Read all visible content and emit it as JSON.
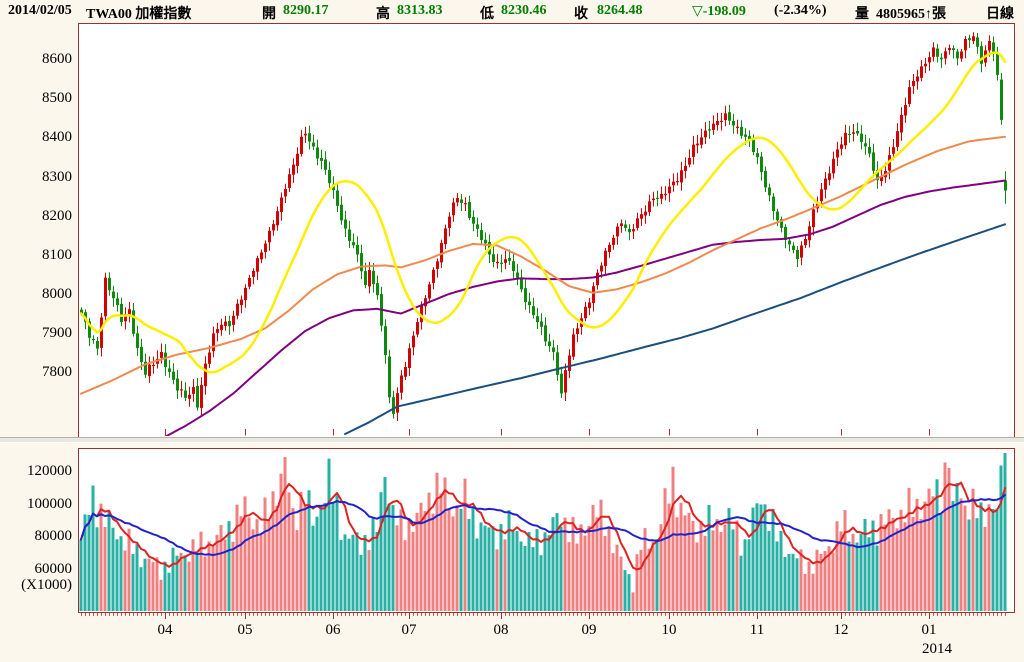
{
  "header": {
    "date": "2014/02/05",
    "symbol": "TWA00 加權指數",
    "open_label": "開",
    "open": "8290.17",
    "high_label": "高",
    "high": "8313.83",
    "low_label": "低",
    "low": "8230.46",
    "close_label": "收",
    "close": "8264.48",
    "change": "▽-198.09",
    "change_pct": "(-2.34%)",
    "volume_label": "量",
    "volume": "4805965↑張",
    "period": "日線"
  },
  "colors": {
    "background": "#fbf7ec",
    "panel_bg": "#ffffff",
    "panel_border": "#993333",
    "text": "#000000",
    "value_green": "#007e00",
    "candle_up": "#d40000",
    "candle_down": "#0f8a0f",
    "ma20": "#ffee00",
    "ma60": "#ef8a4e",
    "ma120": "#800080",
    "ma240": "#1b4f7e",
    "vol_up": "#f08080",
    "vol_down": "#28b0a5",
    "vol_ma_fast": "#dd2222",
    "vol_ma_slow": "#2222cc",
    "tick_minor": "#cc5555",
    "separator": "#e8e8e0"
  },
  "chart_data": {
    "type": "candlestick+volume",
    "title": "TWA00 加權指數 日線",
    "bars": 232,
    "price_axis": {
      "ticks": [
        8600,
        8500,
        8400,
        8300,
        8200,
        8100,
        8000,
        7900,
        7800
      ],
      "range": [
        7637,
        8690
      ]
    },
    "volume_axis": {
      "ticks": [
        120000,
        100000,
        80000,
        60000
      ],
      "unit": "(X1000)",
      "display_range_k": [
        34,
        134
      ]
    },
    "months": [
      {
        "label": "04",
        "bar": 21
      },
      {
        "label": "05",
        "bar": 41
      },
      {
        "label": "06",
        "bar": 63
      },
      {
        "label": "07",
        "bar": 82
      },
      {
        "label": "08",
        "bar": 105
      },
      {
        "label": "09",
        "bar": 127
      },
      {
        "label": "10",
        "bar": 147
      },
      {
        "label": "11",
        "bar": 169
      },
      {
        "label": "12",
        "bar": 190
      },
      {
        "label": "01",
        "bar": 212
      }
    ],
    "year_label": {
      "label": "2014",
      "bar": 212,
      "offset": 8
    },
    "last_bar": {
      "open": 8290.17,
      "high": 8313.83,
      "low": 8230.46,
      "close": 8264.48
    },
    "close_keypoints": [
      [
        0,
        7950
      ],
      [
        2,
        7890
      ],
      [
        4,
        7860
      ],
      [
        6,
        8040
      ],
      [
        8,
        7990
      ],
      [
        10,
        7930
      ],
      [
        12,
        7960
      ],
      [
        14,
        7860
      ],
      [
        16,
        7795
      ],
      [
        18,
        7820
      ],
      [
        20,
        7850
      ],
      [
        22,
        7800
      ],
      [
        24,
        7755
      ],
      [
        26,
        7735
      ],
      [
        28,
        7760
      ],
      [
        29,
        7720
      ],
      [
        31,
        7815
      ],
      [
        33,
        7890
      ],
      [
        35,
        7930
      ],
      [
        37,
        7925
      ],
      [
        39,
        7965
      ],
      [
        41,
        8010
      ],
      [
        43,
        8070
      ],
      [
        45,
        8110
      ],
      [
        47,
        8150
      ],
      [
        49,
        8210
      ],
      [
        51,
        8280
      ],
      [
        53,
        8330
      ],
      [
        55,
        8390
      ],
      [
        56,
        8410
      ],
      [
        58,
        8375
      ],
      [
        60,
        8340
      ],
      [
        62,
        8285
      ],
      [
        64,
        8225
      ],
      [
        66,
        8165
      ],
      [
        68,
        8125
      ],
      [
        70,
        8060
      ],
      [
        71,
        8015
      ],
      [
        72,
        8060
      ],
      [
        73,
        8035
      ],
      [
        74,
        7995
      ],
      [
        75,
        7925
      ],
      [
        76,
        7845
      ],
      [
        77,
        7725
      ],
      [
        78,
        7695
      ],
      [
        80,
        7790
      ],
      [
        82,
        7860
      ],
      [
        84,
        7930
      ],
      [
        86,
        7990
      ],
      [
        88,
        8060
      ],
      [
        90,
        8130
      ],
      [
        92,
        8200
      ],
      [
        94,
        8245
      ],
      [
        96,
        8230
      ],
      [
        98,
        8180
      ],
      [
        100,
        8140
      ],
      [
        102,
        8100
      ],
      [
        104,
        8080
      ],
      [
        106,
        8090
      ],
      [
        108,
        8060
      ],
      [
        110,
        8010
      ],
      [
        112,
        7970
      ],
      [
        114,
        7930
      ],
      [
        116,
        7880
      ],
      [
        118,
        7850
      ],
      [
        119,
        7805
      ],
      [
        120,
        7745
      ],
      [
        121,
        7805
      ],
      [
        123,
        7885
      ],
      [
        125,
        7940
      ],
      [
        127,
        7990
      ],
      [
        129,
        8050
      ],
      [
        131,
        8100
      ],
      [
        133,
        8150
      ],
      [
        135,
        8190
      ],
      [
        137,
        8150
      ],
      [
        139,
        8185
      ],
      [
        141,
        8220
      ],
      [
        143,
        8250
      ],
      [
        145,
        8245
      ],
      [
        147,
        8270
      ],
      [
        149,
        8300
      ],
      [
        151,
        8330
      ],
      [
        153,
        8370
      ],
      [
        155,
        8400
      ],
      [
        157,
        8430
      ],
      [
        159,
        8440
      ],
      [
        161,
        8450
      ],
      [
        163,
        8435
      ],
      [
        165,
        8415
      ],
      [
        167,
        8390
      ],
      [
        169,
        8340
      ],
      [
        171,
        8280
      ],
      [
        173,
        8220
      ],
      [
        175,
        8160
      ],
      [
        177,
        8120
      ],
      [
        179,
        8100
      ],
      [
        181,
        8145
      ],
      [
        183,
        8205
      ],
      [
        185,
        8265
      ],
      [
        187,
        8320
      ],
      [
        189,
        8370
      ],
      [
        191,
        8400
      ],
      [
        193,
        8415
      ],
      [
        195,
        8400
      ],
      [
        197,
        8355
      ],
      [
        199,
        8280
      ],
      [
        201,
        8320
      ],
      [
        203,
        8385
      ],
      [
        205,
        8450
      ],
      [
        207,
        8520
      ],
      [
        209,
        8565
      ],
      [
        211,
        8595
      ],
      [
        213,
        8620
      ],
      [
        215,
        8595
      ],
      [
        217,
        8640
      ],
      [
        219,
        8605
      ],
      [
        221,
        8640
      ],
      [
        223,
        8658
      ],
      [
        225,
        8600
      ],
      [
        227,
        8645
      ],
      [
        228,
        8620
      ],
      [
        229,
        8560
      ],
      [
        230,
        8445
      ],
      [
        231,
        8264.48
      ]
    ],
    "volume_keypoints": [
      [
        0,
        78
      ],
      [
        3,
        104
      ],
      [
        6,
        90
      ],
      [
        10,
        80
      ],
      [
        14,
        70
      ],
      [
        20,
        60
      ],
      [
        24,
        68
      ],
      [
        30,
        74
      ],
      [
        35,
        80
      ],
      [
        41,
        97
      ],
      [
        45,
        85
      ],
      [
        51,
        122
      ],
      [
        53,
        92
      ],
      [
        56,
        106
      ],
      [
        58,
        88
      ],
      [
        62,
        114
      ],
      [
        66,
        80
      ],
      [
        70,
        76
      ],
      [
        74,
        84
      ],
      [
        76,
        122
      ],
      [
        78,
        93
      ],
      [
        80,
        86
      ],
      [
        84,
        90
      ],
      [
        88,
        108
      ],
      [
        90,
        110
      ],
      [
        93,
        97
      ],
      [
        96,
        102
      ],
      [
        100,
        85
      ],
      [
        104,
        82
      ],
      [
        108,
        86
      ],
      [
        112,
        75
      ],
      [
        116,
        80
      ],
      [
        120,
        93
      ],
      [
        124,
        78
      ],
      [
        128,
        95
      ],
      [
        131,
        90
      ],
      [
        134,
        70
      ],
      [
        136,
        60
      ],
      [
        138,
        52
      ],
      [
        140,
        75
      ],
      [
        144,
        80
      ],
      [
        148,
        116
      ],
      [
        150,
        95
      ],
      [
        154,
        85
      ],
      [
        158,
        88
      ],
      [
        162,
        90
      ],
      [
        166,
        75
      ],
      [
        170,
        105
      ],
      [
        174,
        80
      ],
      [
        178,
        68
      ],
      [
        182,
        62
      ],
      [
        186,
        70
      ],
      [
        190,
        87
      ],
      [
        194,
        80
      ],
      [
        198,
        85
      ],
      [
        202,
        90
      ],
      [
        206,
        95
      ],
      [
        210,
        100
      ],
      [
        213,
        105
      ],
      [
        215,
        108
      ],
      [
        217,
        131
      ],
      [
        218,
        92
      ],
      [
        219,
        112
      ],
      [
        221,
        100
      ],
      [
        223,
        98
      ],
      [
        225,
        92
      ],
      [
        227,
        100
      ],
      [
        229,
        95
      ],
      [
        231,
        131
      ]
    ],
    "ma60_keypoints": [
      [
        0,
        7745
      ],
      [
        8,
        7780
      ],
      [
        16,
        7820
      ],
      [
        24,
        7845
      ],
      [
        32,
        7862
      ],
      [
        40,
        7885
      ],
      [
        46,
        7912
      ],
      [
        52,
        7958
      ],
      [
        58,
        8012
      ],
      [
        64,
        8050
      ],
      [
        70,
        8070
      ],
      [
        76,
        8073
      ],
      [
        80,
        8068
      ],
      [
        86,
        8086
      ],
      [
        92,
        8110
      ],
      [
        98,
        8128
      ],
      [
        104,
        8124
      ],
      [
        110,
        8096
      ],
      [
        116,
        8060
      ],
      [
        122,
        8020
      ],
      [
        128,
        8003
      ],
      [
        134,
        8012
      ],
      [
        140,
        8030
      ],
      [
        146,
        8052
      ],
      [
        152,
        8080
      ],
      [
        158,
        8112
      ],
      [
        164,
        8140
      ],
      [
        170,
        8168
      ],
      [
        176,
        8190
      ],
      [
        182,
        8215
      ],
      [
        190,
        8250
      ],
      [
        198,
        8290
      ],
      [
        206,
        8330
      ],
      [
        214,
        8365
      ],
      [
        222,
        8390
      ],
      [
        231,
        8402
      ]
    ],
    "ma120_keypoints": [
      [
        21,
        7635
      ],
      [
        26,
        7662
      ],
      [
        32,
        7700
      ],
      [
        38,
        7745
      ],
      [
        44,
        7800
      ],
      [
        50,
        7855
      ],
      [
        56,
        7905
      ],
      [
        62,
        7938
      ],
      [
        68,
        7958
      ],
      [
        74,
        7962
      ],
      [
        80,
        7950
      ],
      [
        86,
        7975
      ],
      [
        92,
        8000
      ],
      [
        98,
        8018
      ],
      [
        104,
        8032
      ],
      [
        110,
        8040
      ],
      [
        116,
        8038
      ],
      [
        122,
        8038
      ],
      [
        128,
        8042
      ],
      [
        134,
        8055
      ],
      [
        140,
        8072
      ],
      [
        146,
        8090
      ],
      [
        152,
        8108
      ],
      [
        158,
        8126
      ],
      [
        164,
        8133
      ],
      [
        170,
        8138
      ],
      [
        176,
        8141
      ],
      [
        182,
        8152
      ],
      [
        188,
        8172
      ],
      [
        194,
        8200
      ],
      [
        200,
        8228
      ],
      [
        206,
        8248
      ],
      [
        212,
        8262
      ],
      [
        218,
        8272
      ],
      [
        224,
        8280
      ],
      [
        231,
        8290
      ]
    ],
    "ma240_keypoints": [
      [
        66,
        7642
      ],
      [
        72,
        7672
      ],
      [
        79,
        7712
      ],
      [
        90,
        7738
      ],
      [
        100,
        7762
      ],
      [
        110,
        7785
      ],
      [
        119,
        7808
      ],
      [
        130,
        7835
      ],
      [
        140,
        7862
      ],
      [
        150,
        7888
      ],
      [
        158,
        7912
      ],
      [
        168,
        7948
      ],
      [
        180,
        7990
      ],
      [
        190,
        8030
      ],
      [
        200,
        8068
      ],
      [
        210,
        8105
      ],
      [
        220,
        8140
      ],
      [
        231,
        8178
      ]
    ]
  }
}
